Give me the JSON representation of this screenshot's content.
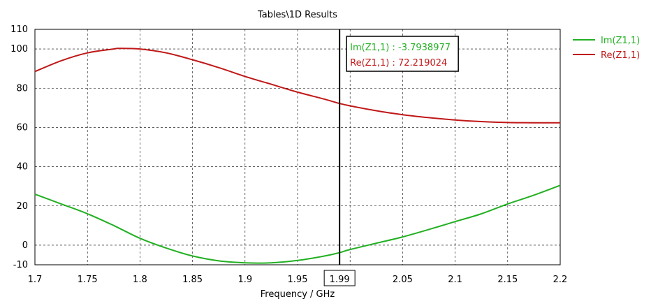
{
  "chart_data": {
    "type": "line",
    "title": "Tables\\1D Results",
    "xlabel": "Frequency / GHz",
    "ylabel": "",
    "xlim": [
      1.7,
      2.2
    ],
    "ylim": [
      -10,
      110
    ],
    "x_ticks": [
      1.7,
      1.75,
      1.8,
      1.85,
      1.9,
      1.95,
      2.0,
      2.05,
      2.1,
      2.15,
      2.2
    ],
    "x_tick_labels": [
      "1.7",
      "1.75",
      "1.8",
      "1.85",
      "1.9",
      "1.95",
      "",
      "2.05",
      "2.1",
      "2.15",
      "2.2"
    ],
    "y_ticks": [
      -10,
      0,
      20,
      40,
      60,
      80,
      100,
      110
    ],
    "y_tick_labels": [
      "-10",
      "0",
      "20",
      "40",
      "60",
      "80",
      "100",
      "110"
    ],
    "grid": true,
    "legend_position": "right",
    "series": [
      {
        "name": "Im(Z1,1)",
        "color": "#22b022",
        "x": [
          1.7,
          1.725,
          1.75,
          1.775,
          1.8,
          1.825,
          1.85,
          1.875,
          1.9,
          1.925,
          1.95,
          1.975,
          1.99,
          2.0,
          2.025,
          2.05,
          2.075,
          2.1,
          2.125,
          2.15,
          2.175,
          2.2
        ],
        "y": [
          26,
          21,
          16,
          10,
          3.5,
          -1.5,
          -5.5,
          -8,
          -9,
          -9,
          -7.8,
          -5.6,
          -3.79,
          -2.2,
          1,
          4.2,
          8,
          12,
          16,
          21,
          25.5,
          30.5
        ]
      },
      {
        "name": "Re(Z1,1)",
        "color": "#c01818",
        "x": [
          1.7,
          1.725,
          1.75,
          1.775,
          1.78,
          1.8,
          1.825,
          1.85,
          1.875,
          1.9,
          1.925,
          1.95,
          1.975,
          1.99,
          2.0,
          2.025,
          2.05,
          2.075,
          2.1,
          2.125,
          2.15,
          2.175,
          2.2
        ],
        "y": [
          88.5,
          94,
          98,
          100,
          100.3,
          100,
          98,
          94.5,
          90.5,
          86,
          82,
          78,
          74.5,
          72.22,
          71,
          68.5,
          66.5,
          65,
          63.8,
          63,
          62.5,
          62.4,
          62.4
        ]
      }
    ],
    "marker": {
      "x": 1.99,
      "label": "1.99",
      "readouts": [
        {
          "text": "Im(Z1,1) : -3.7938977",
          "color": "#22b022"
        },
        {
          "text": "Re(Z1,1) : 72.219024",
          "color": "#c01818"
        }
      ]
    }
  }
}
